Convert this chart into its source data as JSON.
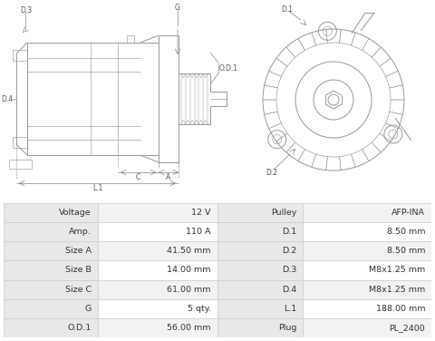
{
  "bg_color": "#ffffff",
  "table_data": [
    [
      "Voltage",
      "12 V",
      "Pulley",
      "AFP-INA"
    ],
    [
      "Amp.",
      "110 A",
      "D.1",
      "8.50 mm"
    ],
    [
      "Size A",
      "41.50 mm",
      "D.2",
      "8.50 mm"
    ],
    [
      "Size B",
      "14.00 mm",
      "D.3",
      "M8x1.25 mm"
    ],
    [
      "Size C",
      "61.00 mm",
      "D.4",
      "M8x1.25 mm"
    ],
    [
      "G",
      "5 qty.",
      "L.1",
      "188.00 mm"
    ],
    [
      "O.D.1",
      "56.00 mm",
      "Plug",
      "PL_2400"
    ]
  ],
  "header_bg": "#e8e8e8",
  "row_bg_odd": "#f2f2f2",
  "row_bg_even": "#ffffff",
  "border_color": "#cccccc",
  "text_color": "#333333",
  "line_color": "#999999",
  "dim_color": "#888888",
  "label_color": "#555555"
}
